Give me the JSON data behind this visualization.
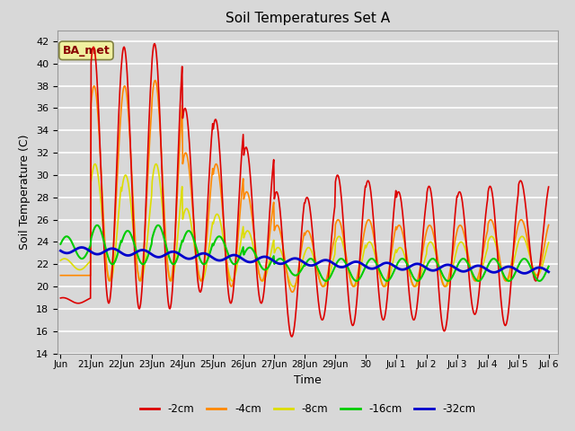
{
  "title": "Soil Temperatures Set A",
  "xlabel": "Time",
  "ylabel": "Soil Temperature (C)",
  "ylim": [
    14,
    43
  ],
  "yticks": [
    14,
    16,
    18,
    20,
    22,
    24,
    26,
    28,
    30,
    32,
    34,
    36,
    38,
    40,
    42
  ],
  "background_color": "#d8d8d8",
  "plot_bg_color": "#d8d8d8",
  "grid_color": "#ffffff",
  "annotation_text": "BA_met",
  "annotation_bg": "#f0f0a0",
  "annotation_border": "#808040",
  "colors": {
    "-2cm": "#dd0000",
    "-4cm": "#ff8800",
    "-8cm": "#dddd00",
    "-16cm": "#00cc00",
    "-32cm": "#0000cc"
  },
  "linewidths": {
    "-2cm": 1.2,
    "-4cm": 1.2,
    "-8cm": 1.2,
    "-16cm": 1.5,
    "-32cm": 2.0
  },
  "peak_vals_2cm": [
    19.0,
    41.5,
    41.5,
    41.8,
    36.0,
    35.0,
    32.5,
    28.5,
    28.0,
    30.0,
    29.5,
    28.5,
    29.0,
    28.5,
    29.0,
    29.5
  ],
  "min_vals_2cm": [
    18.5,
    18.5,
    18.0,
    18.0,
    19.5,
    18.5,
    18.5,
    15.5,
    17.0,
    16.5,
    17.0,
    17.0,
    16.0,
    17.5,
    16.5,
    20.5
  ],
  "peak_vals_4cm": [
    21.0,
    38.0,
    38.0,
    38.5,
    32.0,
    31.0,
    28.5,
    25.5,
    25.0,
    26.0,
    26.0,
    25.5,
    25.5,
    25.5,
    26.0,
    26.0
  ],
  "min_vals_4cm": [
    21.0,
    20.5,
    20.5,
    20.5,
    20.5,
    20.0,
    20.5,
    19.5,
    20.0,
    20.0,
    20.0,
    20.0,
    20.0,
    20.5,
    20.5,
    21.0
  ],
  "peak_vals_8cm": [
    22.5,
    31.0,
    30.0,
    31.0,
    27.0,
    26.5,
    25.0,
    23.5,
    23.5,
    24.5,
    24.0,
    23.5,
    24.0,
    24.0,
    24.5,
    24.5
  ],
  "min_vals_8cm": [
    21.5,
    20.5,
    20.5,
    20.5,
    20.5,
    20.5,
    20.5,
    20.0,
    20.0,
    20.0,
    20.0,
    20.0,
    20.0,
    20.5,
    20.5,
    21.0
  ],
  "peak_vals_16cm": [
    24.5,
    25.5,
    25.0,
    25.5,
    25.0,
    24.5,
    23.5,
    22.5,
    22.5,
    22.5,
    22.5,
    22.5,
    22.5,
    22.5,
    22.5,
    22.5
  ],
  "min_vals_16cm": [
    22.5,
    22.0,
    22.0,
    22.0,
    22.0,
    22.0,
    21.5,
    21.0,
    20.5,
    20.5,
    20.5,
    20.5,
    20.5,
    20.5,
    20.5,
    20.5
  ],
  "n_days": 16.0,
  "n_points": 800
}
